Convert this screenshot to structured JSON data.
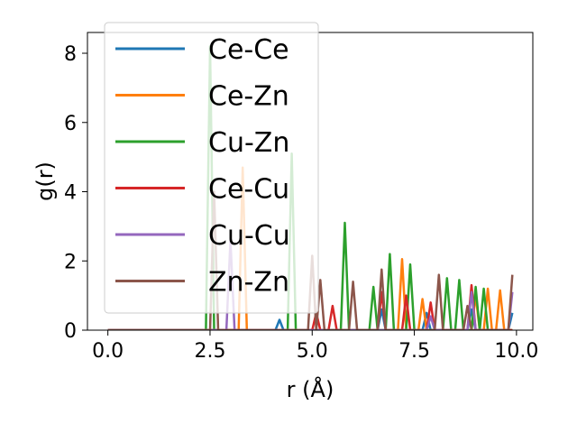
{
  "chart_data": {
    "type": "line",
    "title": "",
    "xlabel": "r (Å)",
    "ylabel": "g(r)",
    "xlim": [
      -0.5,
      10.4
    ],
    "ylim": [
      0,
      8.6
    ],
    "xticks": [
      0.0,
      2.5,
      5.0,
      7.5,
      10.0
    ],
    "xtick_labels": [
      "0.0",
      "2.5",
      "5.0",
      "7.5",
      "10.0"
    ],
    "yticks": [
      0,
      2,
      4,
      6,
      8
    ],
    "ytick_labels": [
      "0",
      "2",
      "4",
      "6",
      "8"
    ],
    "legend_position": "top-left",
    "grid": false,
    "x": [
      0.0,
      0.1,
      0.2,
      0.3,
      0.4,
      0.5,
      0.6,
      0.7,
      0.8,
      0.9,
      1.0,
      1.1,
      1.2,
      1.3,
      1.4,
      1.5,
      1.6,
      1.7,
      1.8,
      1.9,
      2.0,
      2.1,
      2.2,
      2.3,
      2.4,
      2.5,
      2.6,
      2.7,
      2.8,
      2.9,
      3.0,
      3.1,
      3.2,
      3.3,
      3.4,
      3.5,
      3.6,
      3.7,
      3.8,
      3.9,
      4.0,
      4.1,
      4.2,
      4.3,
      4.4,
      4.5,
      4.6,
      4.7,
      4.8,
      4.9,
      5.0,
      5.1,
      5.2,
      5.3,
      5.4,
      5.5,
      5.6,
      5.7,
      5.8,
      5.9,
      6.0,
      6.1,
      6.2,
      6.3,
      6.4,
      6.5,
      6.6,
      6.7,
      6.8,
      6.9,
      7.0,
      7.1,
      7.2,
      7.3,
      7.4,
      7.5,
      7.6,
      7.7,
      7.8,
      7.9,
      8.0,
      8.1,
      8.2,
      8.3,
      8.4,
      8.5,
      8.6,
      8.7,
      8.8,
      8.9,
      9.0,
      9.1,
      9.2,
      9.3,
      9.4,
      9.5,
      9.6,
      9.7,
      9.8,
      9.9
    ],
    "series": [
      {
        "name": "Ce-Ce",
        "color": "#1f77b4",
        "values": [
          0,
          0,
          0,
          0,
          0,
          0,
          0,
          0,
          0,
          0,
          0,
          0,
          0,
          0,
          0,
          0,
          0,
          0,
          0,
          0,
          0,
          0,
          0,
          0,
          0,
          0,
          0,
          0,
          0,
          0,
          0,
          0,
          0,
          0,
          0,
          0,
          0,
          0,
          0,
          0,
          0,
          0,
          0.3,
          0,
          0,
          0,
          0,
          0,
          0,
          0,
          0,
          0,
          0,
          0,
          0,
          0,
          0,
          0,
          0,
          0,
          0,
          0,
          0,
          0,
          0,
          0,
          0,
          0.6,
          0,
          0,
          0,
          0,
          0,
          0,
          0,
          0,
          0,
          0,
          0.5,
          0,
          0,
          0,
          0,
          0,
          0,
          0,
          0,
          0,
          0,
          0.6,
          0,
          0,
          0,
          0,
          0,
          0,
          0,
          0,
          0,
          0.5
        ]
      },
      {
        "name": "Ce-Zn",
        "color": "#ff7f0e",
        "values": [
          0,
          0,
          0,
          0,
          0,
          0,
          0,
          0,
          0,
          0,
          0,
          0,
          0,
          0,
          0,
          0,
          0,
          0,
          0,
          0,
          0,
          0,
          0,
          0,
          0,
          0,
          0,
          0,
          0,
          0,
          0,
          0,
          0,
          4.7,
          0,
          0,
          0,
          0,
          0,
          0,
          0,
          0,
          0,
          0,
          0,
          0,
          0,
          0,
          0,
          0,
          0,
          0,
          0,
          0,
          0,
          0,
          0,
          0,
          0,
          0,
          0,
          0,
          0,
          0,
          0,
          0,
          0,
          0,
          0,
          0,
          0,
          0,
          2.05,
          0,
          0,
          0,
          0,
          0.9,
          0,
          0,
          0,
          0,
          0,
          0,
          0,
          0,
          0,
          0,
          0,
          0,
          1.0,
          0,
          0,
          1.2,
          0,
          0,
          1.15,
          0,
          0,
          0
        ]
      },
      {
        "name": "Cu-Zn",
        "color": "#2ca02c",
        "values": [
          0,
          0,
          0,
          0,
          0,
          0,
          0,
          0,
          0,
          0,
          0,
          0,
          0,
          0,
          0,
          0,
          0,
          0,
          0,
          0,
          0,
          0,
          0,
          0,
          0,
          8.2,
          0,
          0,
          0,
          0,
          0,
          0,
          0,
          0,
          0,
          0,
          0,
          0,
          0,
          0,
          0,
          0,
          0,
          0,
          0,
          5.1,
          0,
          0,
          0,
          0,
          0,
          0,
          0,
          0,
          0,
          0,
          0,
          0,
          3.1,
          0,
          0,
          0,
          0,
          0,
          0,
          1.25,
          0,
          0,
          0,
          2.2,
          0,
          0,
          0,
          0,
          1.9,
          0,
          0,
          0,
          0,
          0,
          0,
          0,
          0,
          1.5,
          0,
          0,
          1.45,
          0,
          0,
          0,
          1.25,
          0,
          1.2,
          0,
          0,
          0,
          0,
          0,
          0,
          0
        ]
      },
      {
        "name": "Ce-Cu",
        "color": "#d62728",
        "values": [
          0,
          0,
          0,
          0,
          0,
          0,
          0,
          0,
          0,
          0,
          0,
          0,
          0,
          0,
          0,
          0,
          0,
          0,
          0,
          0,
          0,
          0,
          0,
          0,
          0,
          0,
          0,
          0,
          0,
          0,
          0,
          0,
          0,
          0,
          0,
          0,
          0,
          0,
          0,
          0,
          0,
          0,
          0,
          0,
          0,
          0,
          0,
          0,
          0,
          0,
          0,
          0.5,
          0,
          0,
          0,
          0.7,
          0,
          0,
          0,
          0,
          0,
          0,
          0,
          0,
          0,
          0,
          0,
          1.1,
          0,
          0,
          0,
          0,
          0,
          1.0,
          0,
          0,
          0,
          0,
          0,
          0.8,
          0,
          0,
          0,
          0,
          0,
          0,
          0,
          0,
          0,
          1.3,
          0,
          0,
          0,
          0,
          0,
          0,
          0,
          0,
          0,
          0
        ]
      },
      {
        "name": "Cu-Cu",
        "color": "#9467bd",
        "values": [
          0,
          0,
          0,
          0,
          0,
          0,
          0,
          0,
          0,
          0,
          0,
          0,
          0,
          0,
          0,
          0,
          0,
          0,
          0,
          0,
          0,
          0,
          0,
          0,
          0,
          0,
          0,
          0,
          0,
          0,
          2.6,
          0,
          0,
          0,
          0,
          0,
          0,
          0,
          0,
          0,
          0,
          0,
          0,
          0,
          0,
          0,
          0,
          0,
          0,
          0,
          0,
          0,
          0,
          0,
          0,
          0,
          0,
          0,
          0,
          0,
          0,
          0,
          0,
          0,
          0,
          0,
          0,
          0,
          0,
          0,
          0,
          0,
          0,
          0,
          0,
          0,
          0,
          0,
          0,
          0.4,
          0,
          0,
          0,
          0,
          0,
          0,
          0,
          0,
          0,
          1.1,
          0,
          0,
          0,
          0,
          0,
          0,
          0,
          0,
          0,
          1.1
        ]
      },
      {
        "name": "Zn-Zn",
        "color": "#8c564b",
        "values": [
          0,
          0,
          0,
          0,
          0,
          0,
          0,
          0,
          0,
          0,
          0,
          0,
          0,
          0,
          0,
          0,
          0,
          0,
          0,
          0,
          0,
          0,
          0,
          0,
          0,
          0,
          4.0,
          0,
          0,
          0,
          0,
          0,
          0,
          0,
          0,
          0,
          0,
          0,
          0,
          0,
          0,
          0,
          0,
          0,
          0,
          0,
          0,
          0,
          0,
          0,
          2.15,
          0,
          1.45,
          0,
          0,
          0,
          0,
          0,
          0,
          0,
          1.4,
          0,
          0,
          0,
          0,
          0,
          0,
          1.75,
          0,
          0,
          0,
          0,
          0,
          0,
          0,
          0,
          0,
          0,
          0,
          0,
          0,
          1.6,
          0,
          0,
          0,
          0,
          0,
          0,
          0.7,
          0,
          0,
          0,
          0,
          0,
          0,
          0,
          0,
          0,
          0,
          1.6
        ]
      }
    ]
  }
}
